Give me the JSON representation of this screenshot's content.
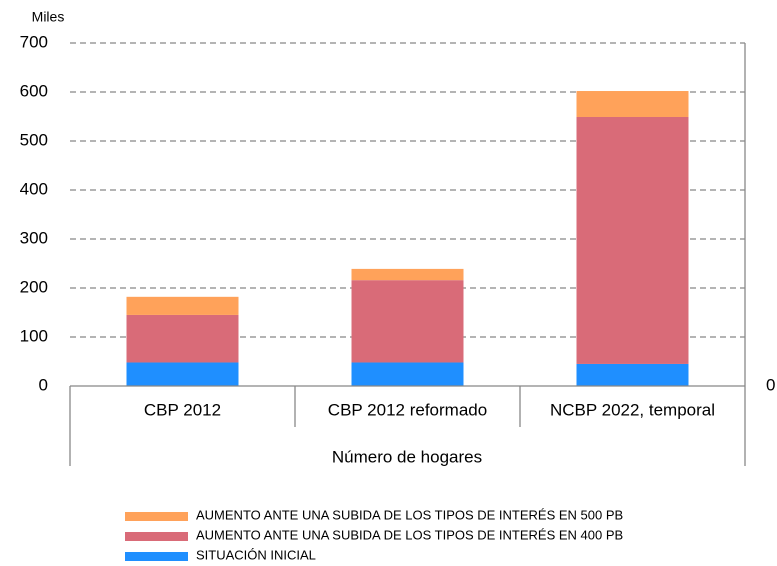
{
  "chart_data": {
    "type": "stacked_bar",
    "y_unit_label": "Miles",
    "x_title": "Número de hogares",
    "categories": [
      "CBP 2012",
      "CBP 2012 reformado",
      "NCBP 2022, temporal"
    ],
    "series": [
      {
        "name": "SITUACIÓN INICIAL",
        "color": "#1f8fff",
        "values": [
          48,
          48,
          45
        ]
      },
      {
        "name": "AUMENTO ANTE UNA SUBIDA DE LOS TIPOS DE INTERÉS EN 400 PB",
        "color": "#d96b78",
        "values": [
          97,
          168,
          504
        ]
      },
      {
        "name": "AUMENTO ANTE UNA SUBIDA DE LOS TIPOS DE INTERÉS EN 500 PB",
        "color": "#ffa25a",
        "values": [
          37,
          23,
          53
        ]
      }
    ],
    "ylim": [
      0,
      700
    ],
    "yticks": [
      0,
      100,
      200,
      300,
      400,
      500,
      600,
      700
    ],
    "y2lim": [
      0,
      700
    ],
    "y2ticks": [
      0
    ],
    "grid": true
  }
}
